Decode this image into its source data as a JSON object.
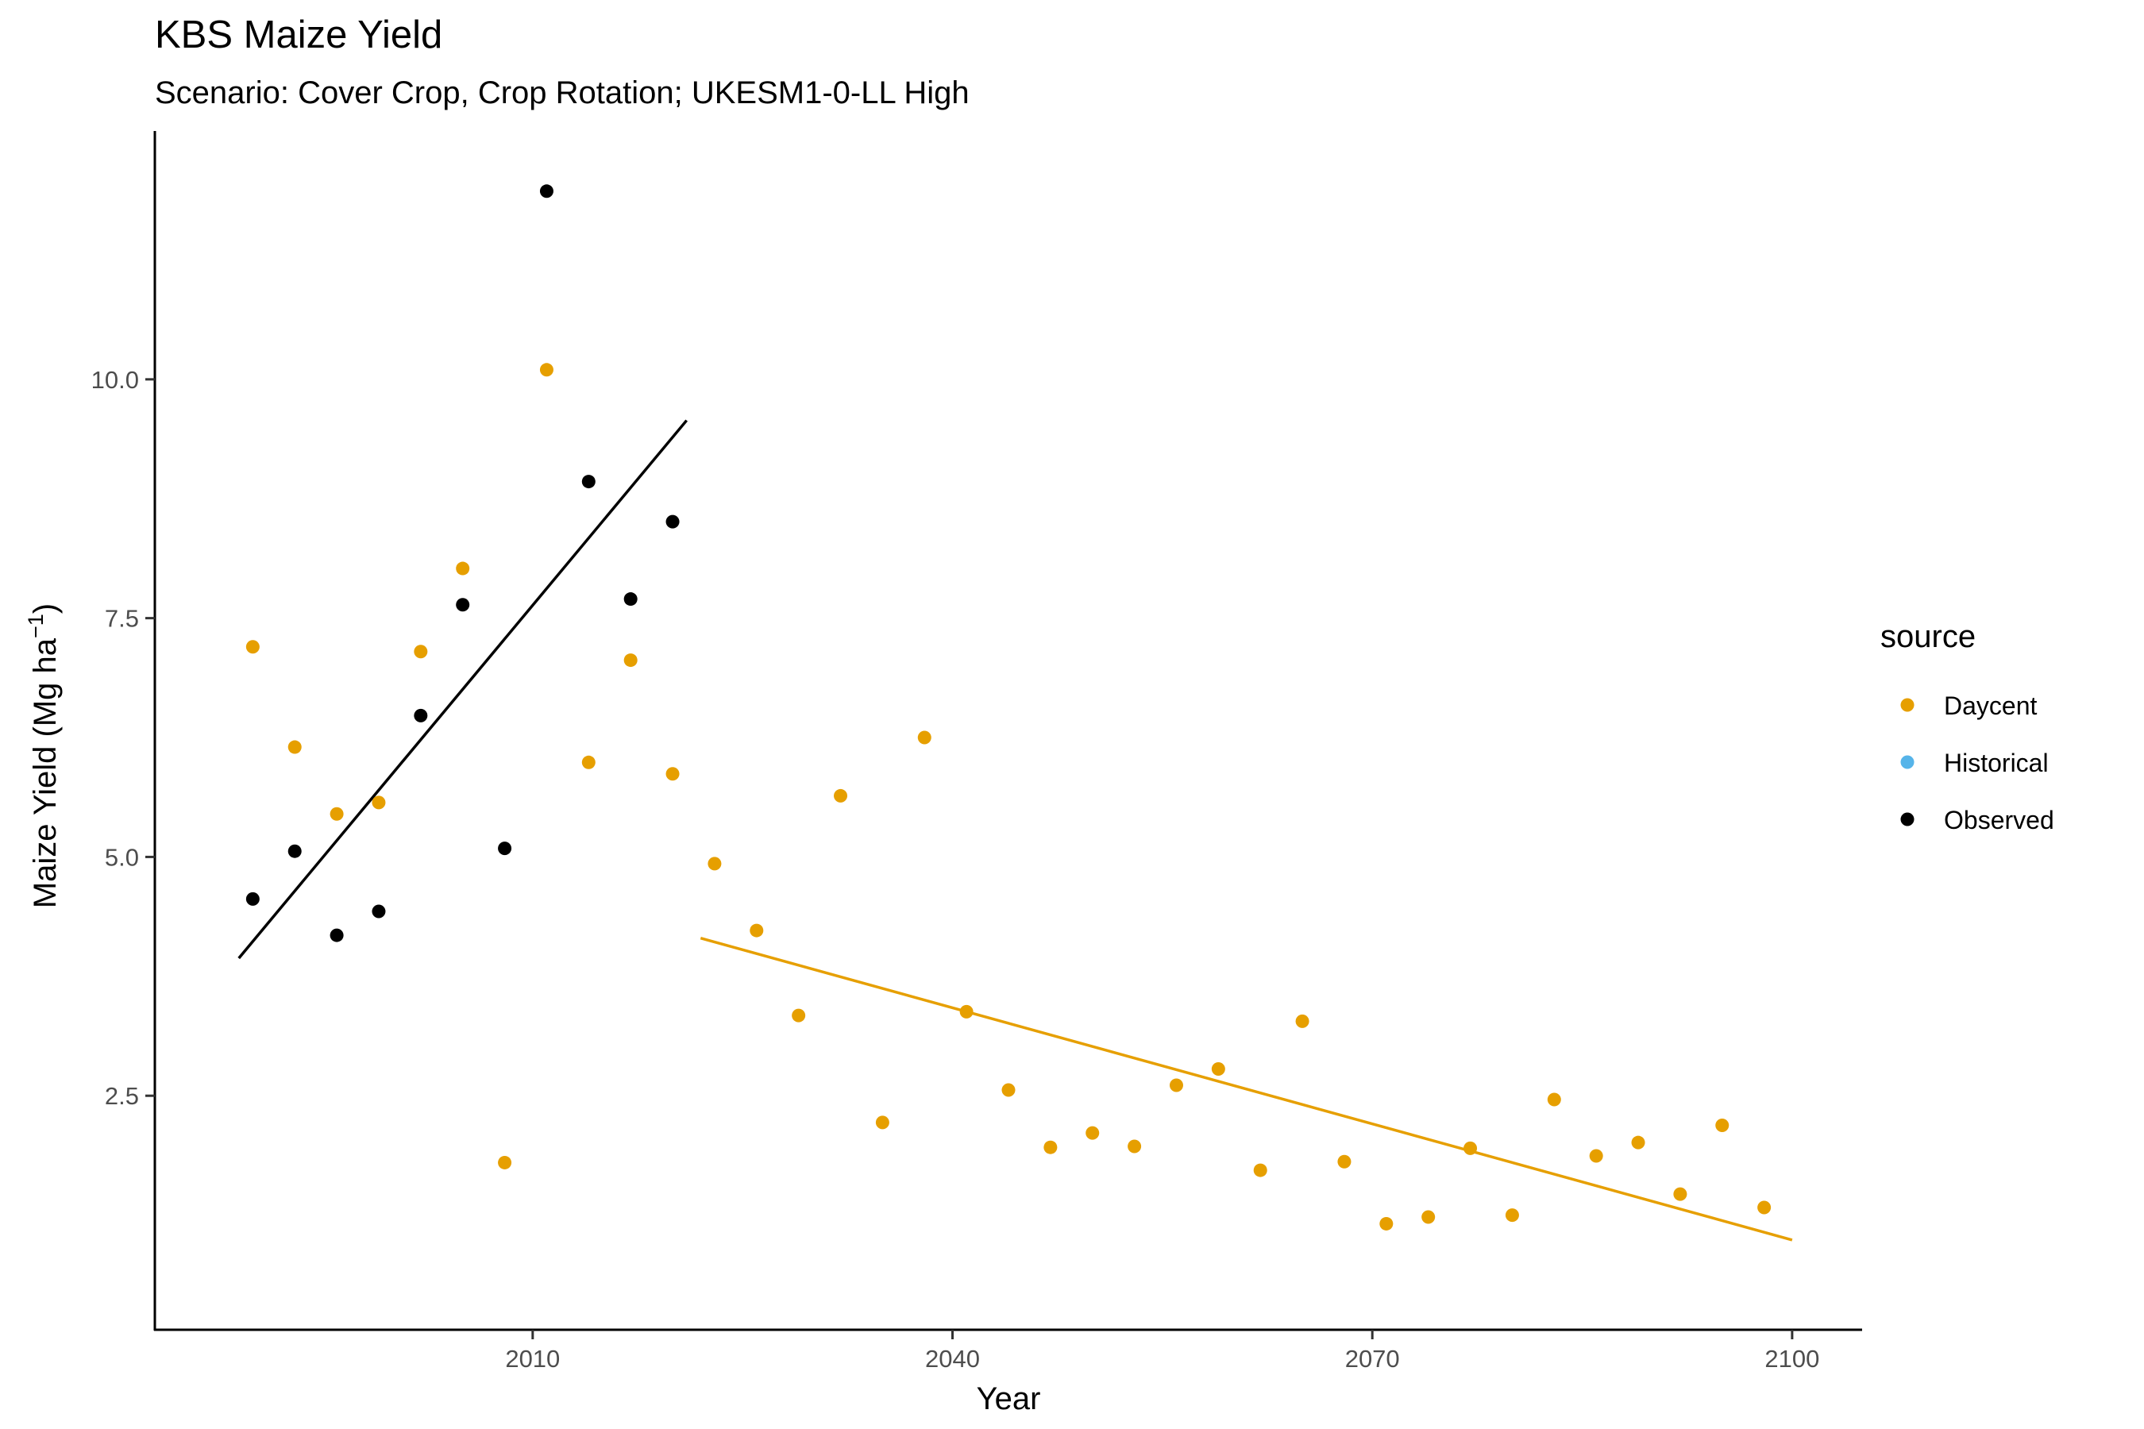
{
  "chart_data": {
    "type": "scatter",
    "title": "KBS Maize Yield",
    "subtitle": "Scenario: Cover Crop, Crop Rotation; UKESM1-0-LL High",
    "xlabel": "Year",
    "ylabel_main": "Maize Yield (Mg ha",
    "ylabel_sup": "−1",
    "ylabel_close": ")",
    "xlim": [
      1983,
      2105
    ],
    "ylim": [
      0.05,
      12.6
    ],
    "xticks": [
      2010,
      2040,
      2070,
      2100
    ],
    "xtick_labels": [
      "2010",
      "2040",
      "2070",
      "2100"
    ],
    "yticks": [
      2.5,
      5.0,
      7.5,
      10.0
    ],
    "ytick_labels": [
      "2.5",
      "5.0",
      "7.5",
      "10.0"
    ],
    "grid": false,
    "legend": {
      "title": "source",
      "position": "right",
      "entries": [
        {
          "label": "Daycent",
          "color": "#E69F00"
        },
        {
          "label": "Historical",
          "color": "#56B4E9"
        },
        {
          "label": "Observed",
          "color": "#000000"
        }
      ]
    },
    "series": [
      {
        "name": "Daycent",
        "color": "#E69F00",
        "points": [
          [
            1990,
            7.2
          ],
          [
            1993,
            6.15
          ],
          [
            1996,
            5.45
          ],
          [
            1999,
            5.57
          ],
          [
            2002,
            7.15
          ],
          [
            2005,
            8.02
          ],
          [
            2008,
            1.8
          ],
          [
            2011,
            10.1
          ],
          [
            2014,
            5.99
          ],
          [
            2017,
            7.06
          ],
          [
            2020,
            5.87
          ],
          [
            2023,
            4.93
          ],
          [
            2026,
            4.23
          ],
          [
            2029,
            3.34
          ],
          [
            2032,
            5.64
          ],
          [
            2035,
            2.22
          ],
          [
            2038,
            6.25
          ],
          [
            2041,
            3.38
          ],
          [
            2044,
            2.56
          ],
          [
            2047,
            1.96
          ],
          [
            2050,
            2.11
          ],
          [
            2053,
            1.97
          ],
          [
            2056,
            2.61
          ],
          [
            2059,
            2.78
          ],
          [
            2062,
            1.72
          ],
          [
            2065,
            3.28
          ],
          [
            2068,
            1.81
          ],
          [
            2071,
            1.16
          ],
          [
            2074,
            1.23
          ],
          [
            2077,
            1.95
          ],
          [
            2080,
            1.25
          ],
          [
            2083,
            2.46
          ],
          [
            2086,
            1.87
          ],
          [
            2089,
            2.01
          ],
          [
            2092,
            1.47
          ],
          [
            2095,
            2.19
          ],
          [
            2098,
            1.33
          ]
        ],
        "trend": [
          [
            2022,
            4.15
          ],
          [
            2100,
            0.99
          ]
        ]
      },
      {
        "name": "Historical",
        "color": "#56B4E9",
        "points": []
      },
      {
        "name": "Observed",
        "color": "#000000",
        "points": [
          [
            1990,
            4.56
          ],
          [
            1993,
            5.06
          ],
          [
            1996,
            4.18
          ],
          [
            1999,
            4.43
          ],
          [
            2002,
            6.48
          ],
          [
            2005,
            7.64
          ],
          [
            2008,
            5.09
          ],
          [
            2011,
            11.97
          ],
          [
            2014,
            8.93
          ],
          [
            2017,
            7.7
          ],
          [
            2020,
            8.51
          ]
        ],
        "trend": [
          [
            1989,
            3.94
          ],
          [
            2021,
            9.57
          ]
        ]
      }
    ]
  }
}
